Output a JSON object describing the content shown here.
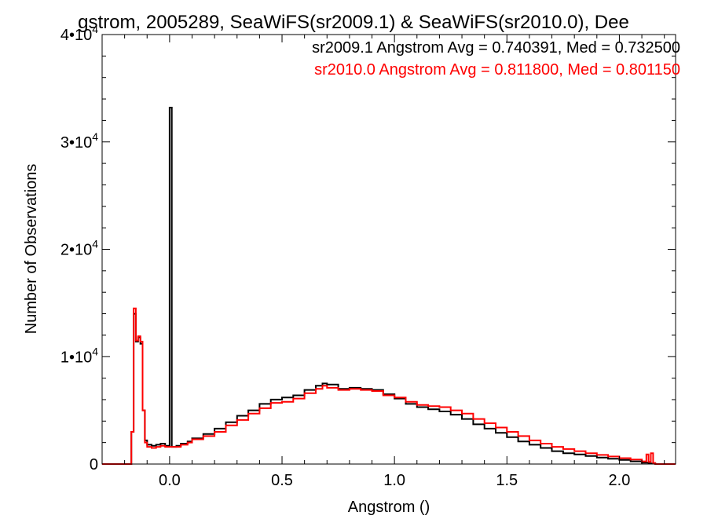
{
  "chart_data": {
    "type": "line",
    "title": "gstrom, 2005289, SeaWiFS(sr2009.1) & SeaWiFS(sr2010.0), Dee",
    "xlabel": "Angstrom ()",
    "ylabel": "Number of Observations",
    "xlim": [
      -0.3,
      2.25
    ],
    "ylim": [
      0,
      40000
    ],
    "grid": false,
    "step": true,
    "x_ticks": [
      {
        "value": 0.0,
        "label": "0.0"
      },
      {
        "value": 0.5,
        "label": "0.5"
      },
      {
        "value": 1.0,
        "label": "1.0"
      },
      {
        "value": 1.5,
        "label": "1.5"
      },
      {
        "value": 2.0,
        "label": "2.0"
      }
    ],
    "y_ticks": [
      {
        "value": 0,
        "base": "0",
        "exp": ""
      },
      {
        "value": 10000,
        "base": "1•10",
        "exp": "4"
      },
      {
        "value": 20000,
        "base": "2•10",
        "exp": "4"
      },
      {
        "value": 30000,
        "base": "3•10",
        "exp": "4"
      },
      {
        "value": 40000,
        "base": "4•10",
        "exp": "4"
      }
    ],
    "annotations": [
      {
        "text": "sr2009.1 Angstrom Avg = 0.740391, Med = 0.732500",
        "color": "#000000"
      },
      {
        "text": "sr2010.0 Angstrom Avg = 0.811800, Med = 0.801150",
        "color": "#ff0000"
      }
    ],
    "series": [
      {
        "color": "#000000",
        "points": [
          [
            -0.3,
            0
          ],
          [
            -0.18,
            0
          ],
          [
            -0.17,
            3000
          ],
          [
            -0.16,
            14000
          ],
          [
            -0.15,
            11400
          ],
          [
            -0.14,
            11800
          ],
          [
            -0.13,
            11200
          ],
          [
            -0.12,
            5000
          ],
          [
            -0.11,
            2200
          ],
          [
            -0.1,
            1800
          ],
          [
            -0.08,
            1700
          ],
          [
            -0.06,
            1800
          ],
          [
            -0.04,
            1900
          ],
          [
            -0.02,
            1700
          ],
          [
            -0.01,
            1700
          ],
          [
            0.0,
            33200
          ],
          [
            0.01,
            1600
          ],
          [
            0.03,
            1700
          ],
          [
            0.05,
            1900
          ],
          [
            0.08,
            2100
          ],
          [
            0.1,
            2400
          ],
          [
            0.15,
            2800
          ],
          [
            0.2,
            3300
          ],
          [
            0.25,
            3900
          ],
          [
            0.3,
            4500
          ],
          [
            0.35,
            5000
          ],
          [
            0.4,
            5600
          ],
          [
            0.45,
            6000
          ],
          [
            0.5,
            6200
          ],
          [
            0.55,
            6400
          ],
          [
            0.6,
            6900
          ],
          [
            0.65,
            7300
          ],
          [
            0.68,
            7500
          ],
          [
            0.7,
            7400
          ],
          [
            0.75,
            7000
          ],
          [
            0.8,
            7100
          ],
          [
            0.85,
            7000
          ],
          [
            0.9,
            6900
          ],
          [
            0.95,
            6500
          ],
          [
            1.0,
            6100
          ],
          [
            1.05,
            5600
          ],
          [
            1.1,
            5300
          ],
          [
            1.15,
            5100
          ],
          [
            1.2,
            4900
          ],
          [
            1.25,
            4600
          ],
          [
            1.3,
            4200
          ],
          [
            1.35,
            3700
          ],
          [
            1.4,
            3300
          ],
          [
            1.45,
            2900
          ],
          [
            1.5,
            2500
          ],
          [
            1.55,
            2100
          ],
          [
            1.6,
            1800
          ],
          [
            1.65,
            1500
          ],
          [
            1.7,
            1200
          ],
          [
            1.75,
            1000
          ],
          [
            1.8,
            900
          ],
          [
            1.85,
            750
          ],
          [
            1.9,
            600
          ],
          [
            1.95,
            500
          ],
          [
            2.0,
            380
          ],
          [
            2.05,
            250
          ],
          [
            2.1,
            130
          ],
          [
            2.13,
            50
          ],
          [
            2.16,
            0
          ],
          [
            2.25,
            0
          ]
        ]
      },
      {
        "color": "#ff0000",
        "points": [
          [
            -0.3,
            0
          ],
          [
            -0.18,
            0
          ],
          [
            -0.17,
            3000
          ],
          [
            -0.16,
            14500
          ],
          [
            -0.15,
            11500
          ],
          [
            -0.14,
            11900
          ],
          [
            -0.13,
            11400
          ],
          [
            -0.12,
            5000
          ],
          [
            -0.11,
            2000
          ],
          [
            -0.1,
            1600
          ],
          [
            -0.08,
            1500
          ],
          [
            -0.06,
            1600
          ],
          [
            -0.04,
            1700
          ],
          [
            -0.02,
            1600
          ],
          [
            0.0,
            1600
          ],
          [
            0.03,
            1600
          ],
          [
            0.05,
            1800
          ],
          [
            0.08,
            2000
          ],
          [
            0.1,
            2300
          ],
          [
            0.15,
            2600
          ],
          [
            0.2,
            3000
          ],
          [
            0.25,
            3600
          ],
          [
            0.3,
            4100
          ],
          [
            0.35,
            4700
          ],
          [
            0.4,
            5200
          ],
          [
            0.45,
            5700
          ],
          [
            0.5,
            5800
          ],
          [
            0.55,
            6100
          ],
          [
            0.6,
            6600
          ],
          [
            0.65,
            7000
          ],
          [
            0.68,
            7300
          ],
          [
            0.7,
            7100
          ],
          [
            0.75,
            6900
          ],
          [
            0.8,
            7000
          ],
          [
            0.85,
            6900
          ],
          [
            0.9,
            6800
          ],
          [
            0.95,
            6400
          ],
          [
            1.0,
            6200
          ],
          [
            1.05,
            5800
          ],
          [
            1.1,
            5500
          ],
          [
            1.15,
            5400
          ],
          [
            1.2,
            5300
          ],
          [
            1.25,
            5000
          ],
          [
            1.3,
            4700
          ],
          [
            1.35,
            4200
          ],
          [
            1.4,
            3800
          ],
          [
            1.45,
            3400
          ],
          [
            1.5,
            3000
          ],
          [
            1.55,
            2600
          ],
          [
            1.6,
            2200
          ],
          [
            1.65,
            1900
          ],
          [
            1.7,
            1600
          ],
          [
            1.75,
            1400
          ],
          [
            1.8,
            1200
          ],
          [
            1.85,
            1000
          ],
          [
            1.9,
            850
          ],
          [
            1.95,
            700
          ],
          [
            2.0,
            550
          ],
          [
            2.05,
            420
          ],
          [
            2.1,
            250
          ],
          [
            2.12,
            900
          ],
          [
            2.13,
            200
          ],
          [
            2.14,
            1000
          ],
          [
            2.15,
            100
          ],
          [
            2.16,
            0
          ],
          [
            2.25,
            0
          ]
        ]
      }
    ]
  }
}
